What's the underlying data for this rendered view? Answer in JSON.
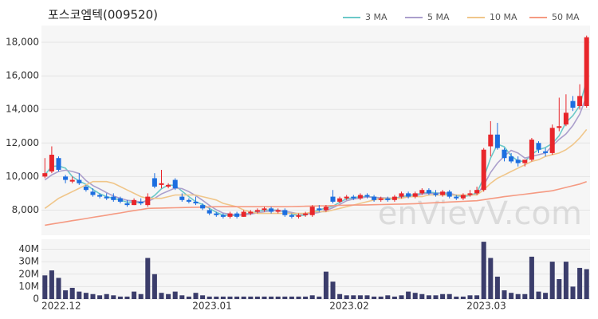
{
  "chart_data": {
    "type": "candlestick",
    "title": "포스코엠텍(009520)",
    "watermark": "enVievV.com",
    "categories": [
      "2022.12",
      null,
      null,
      null,
      null,
      null,
      null,
      null,
      null,
      null,
      null,
      null,
      null,
      null,
      null,
      null,
      null,
      null,
      null,
      null,
      null,
      null,
      "2023.01",
      null,
      null,
      null,
      null,
      null,
      null,
      null,
      null,
      null,
      null,
      null,
      null,
      null,
      null,
      null,
      null,
      null,
      null,
      null,
      "2023.02",
      null,
      null,
      null,
      null,
      null,
      null,
      null,
      null,
      null,
      null,
      null,
      null,
      null,
      null,
      null,
      null,
      null,
      null,
      null,
      "2023.03",
      null,
      null,
      null,
      null,
      null,
      null,
      null,
      null,
      null,
      null,
      null,
      null,
      null,
      null,
      null,
      null,
      null
    ],
    "ohlc": [
      [
        10000,
        11100,
        9900,
        10200
      ],
      [
        10300,
        11800,
        10200,
        11300
      ],
      [
        11100,
        11200,
        10300,
        10400
      ],
      [
        10000,
        10100,
        9600,
        9800
      ],
      [
        9700,
        10000,
        9600,
        9800
      ],
      [
        9800,
        10200,
        9500,
        9600
      ],
      [
        9400,
        9500,
        9100,
        9200
      ],
      [
        9100,
        9300,
        8800,
        8900
      ],
      [
        8900,
        9000,
        8700,
        8800
      ],
      [
        8800,
        9000,
        8600,
        8700
      ],
      [
        8800,
        9000,
        8500,
        8600
      ],
      [
        8700,
        8800,
        8400,
        8500
      ],
      [
        8400,
        8600,
        8200,
        8300
      ],
      [
        8300,
        8700,
        8300,
        8600
      ],
      [
        8500,
        8700,
        8300,
        8400
      ],
      [
        8300,
        9000,
        8200,
        8800
      ],
      [
        9900,
        10200,
        9300,
        9400
      ],
      [
        9500,
        10400,
        9300,
        9600
      ],
      [
        9400,
        9600,
        9300,
        9500
      ],
      [
        9800,
        9900,
        9200,
        9300
      ],
      [
        8800,
        9000,
        8500,
        8600
      ],
      [
        8600,
        8700,
        8400,
        8500
      ],
      [
        8500,
        8800,
        8300,
        8400
      ],
      [
        8300,
        8400,
        8000,
        8100
      ],
      [
        8000,
        8100,
        7700,
        7800
      ],
      [
        7800,
        7900,
        7600,
        7700
      ],
      [
        7700,
        7800,
        7500,
        7600
      ],
      [
        7600,
        7900,
        7500,
        7800
      ],
      [
        7800,
        7900,
        7500,
        7600
      ],
      [
        7600,
        8000,
        7600,
        7900
      ],
      [
        7800,
        8000,
        7700,
        7900
      ],
      [
        7900,
        8100,
        7800,
        8000
      ],
      [
        8000,
        8200,
        7900,
        8100
      ],
      [
        8100,
        8200,
        7800,
        7900
      ],
      [
        7900,
        8100,
        7800,
        8000
      ],
      [
        8000,
        8100,
        7600,
        7700
      ],
      [
        7700,
        7800,
        7500,
        7600
      ],
      [
        7600,
        7800,
        7500,
        7700
      ],
      [
        7700,
        7900,
        7600,
        7800
      ],
      [
        7700,
        8300,
        7600,
        8200
      ],
      [
        8100,
        8300,
        7900,
        8000
      ],
      [
        8000,
        8300,
        7900,
        8200
      ],
      [
        8800,
        9200,
        8400,
        8500
      ],
      [
        8500,
        8800,
        8400,
        8700
      ],
      [
        8700,
        8900,
        8600,
        8800
      ],
      [
        8800,
        8900,
        8600,
        8700
      ],
      [
        8700,
        9000,
        8600,
        8900
      ],
      [
        8900,
        9000,
        8700,
        8800
      ],
      [
        8800,
        8900,
        8500,
        8600
      ],
      [
        8600,
        8800,
        8500,
        8700
      ],
      [
        8700,
        8800,
        8500,
        8600
      ],
      [
        8600,
        8900,
        8500,
        8800
      ],
      [
        8800,
        9100,
        8700,
        9000
      ],
      [
        9000,
        9100,
        8700,
        8800
      ],
      [
        8800,
        9100,
        8700,
        9000
      ],
      [
        9000,
        9300,
        8900,
        9200
      ],
      [
        9200,
        9300,
        8900,
        9000
      ],
      [
        9000,
        9200,
        8800,
        8900
      ],
      [
        8900,
        9200,
        8800,
        9100
      ],
      [
        9100,
        9200,
        8700,
        8800
      ],
      [
        8800,
        8900,
        8600,
        8700
      ],
      [
        8700,
        9000,
        8600,
        8900
      ],
      [
        8900,
        9200,
        8800,
        9000
      ],
      [
        9000,
        9400,
        8900,
        9200
      ],
      [
        9200,
        11700,
        9100,
        11600
      ],
      [
        11800,
        13300,
        11200,
        12500
      ],
      [
        12500,
        13200,
        11600,
        11700
      ],
      [
        11600,
        11700,
        10900,
        11100
      ],
      [
        11200,
        11400,
        10800,
        10900
      ],
      [
        11000,
        11200,
        10600,
        10800
      ],
      [
        10800,
        11000,
        10600,
        11000
      ],
      [
        11000,
        12300,
        10900,
        12200
      ],
      [
        12000,
        12100,
        11400,
        11600
      ],
      [
        11500,
        11700,
        11200,
        11400
      ],
      [
        11400,
        13100,
        11300,
        12900
      ],
      [
        12900,
        14700,
        12700,
        13000
      ],
      [
        13100,
        14900,
        13000,
        13800
      ],
      [
        14500,
        14800,
        13900,
        14100
      ],
      [
        14200,
        15500,
        14000,
        14800
      ],
      [
        14200,
        18400,
        14100,
        18300
      ]
    ],
    "volume": [
      19000000,
      23000000,
      17000000,
      7000000,
      9000000,
      6000000,
      5000000,
      4000000,
      3000000,
      4000000,
      3000000,
      2000000,
      2000000,
      6000000,
      4000000,
      33000000,
      20000000,
      5000000,
      4000000,
      6000000,
      3000000,
      2000000,
      5000000,
      3000000,
      2000000,
      2000000,
      2000000,
      2000000,
      2000000,
      2000000,
      2000000,
      2000000,
      2000000,
      2000000,
      2000000,
      2000000,
      2000000,
      2000000,
      2000000,
      3000000,
      2000000,
      22000000,
      14000000,
      4000000,
      3000000,
      3000000,
      3000000,
      3000000,
      2000000,
      2000000,
      3000000,
      2000000,
      3000000,
      6000000,
      5000000,
      4000000,
      3000000,
      3000000,
      4000000,
      4000000,
      2000000,
      2000000,
      3000000,
      3000000,
      46000000,
      33000000,
      18000000,
      7000000,
      5000000,
      4000000,
      4000000,
      34000000,
      6000000,
      5000000,
      30000000,
      16000000,
      30000000,
      10000000,
      25000000,
      24000000
    ],
    "series": [
      {
        "name": "3 MA",
        "color": "#6cc9c9",
        "values": [
          10100,
          10600,
          10630,
          10500,
          10000,
          9730,
          9530,
          9230,
          8970,
          8800,
          8700,
          8600,
          8470,
          8470,
          8430,
          8600,
          8870,
          9270,
          9500,
          9470,
          9130,
          8800,
          8500,
          8330,
          8100,
          7870,
          7700,
          7700,
          7670,
          7770,
          7800,
          7930,
          8000,
          8000,
          8000,
          7870,
          7770,
          7670,
          7700,
          7900,
          8000,
          8130,
          8230,
          8470,
          8670,
          8730,
          8800,
          8800,
          8770,
          8700,
          8630,
          8700,
          8800,
          8870,
          8930,
          9000,
          9070,
          9030,
          9000,
          8930,
          8870,
          8800,
          8870,
          9030,
          9930,
          11100,
          11930,
          11770,
          11230,
          10930,
          10900,
          11330,
          11600,
          11730,
          11970,
          12430,
          13230,
          13630,
          14230,
          15730
        ]
      },
      {
        "name": "5 MA",
        "color": "#ab9fcc",
        "values": [
          9800,
          10100,
          10300,
          10380,
          10300,
          10180,
          9760,
          9460,
          9260,
          9040,
          8840,
          8700,
          8580,
          8540,
          8480,
          8520,
          8700,
          8960,
          9140,
          9320,
          9280,
          9100,
          8860,
          8580,
          8280,
          8020,
          7820,
          7760,
          7700,
          7720,
          7760,
          7840,
          7900,
          7960,
          7980,
          7940,
          7860,
          7780,
          7760,
          7800,
          7860,
          7980,
          8140,
          8340,
          8560,
          8660,
          8720,
          8780,
          8760,
          8740,
          8720,
          8700,
          8740,
          8780,
          8840,
          8960,
          9000,
          8980,
          9040,
          9000,
          8900,
          8880,
          8900,
          8920,
          9480,
          10240,
          10800,
          11220,
          11560,
          11400,
          11100,
          11200,
          11300,
          11400,
          11820,
          12220,
          12540,
          13040,
          13720,
          14800
        ]
      },
      {
        "name": "10 MA",
        "color": "#f0c68a",
        "values": [
          8100,
          8400,
          8700,
          8900,
          9100,
          9300,
          9500,
          9700,
          9700,
          9700,
          9600,
          9400,
          9200,
          9000,
          8800,
          8700,
          8700,
          8700,
          8800,
          8900,
          8900,
          8900,
          8900,
          8800,
          8700,
          8600,
          8400,
          8300,
          8200,
          8000,
          7900,
          7800,
          7800,
          7800,
          7800,
          7800,
          7800,
          7800,
          7800,
          7900,
          7900,
          7900,
          8000,
          8100,
          8200,
          8300,
          8400,
          8500,
          8600,
          8700,
          8700,
          8700,
          8700,
          8800,
          8800,
          8800,
          8900,
          8900,
          8900,
          8900,
          8900,
          8900,
          8900,
          8900,
          9200,
          9600,
          9900,
          10100,
          10300,
          10500,
          10700,
          10900,
          11000,
          11200,
          11300,
          11400,
          11600,
          11900,
          12300,
          12800
        ]
      },
      {
        "name": "50 MA",
        "color": "#f59a82",
        "values": [
          7100,
          7170,
          7230,
          7300,
          7370,
          7430,
          7500,
          7570,
          7630,
          7700,
          7770,
          7830,
          7900,
          7970,
          8030,
          8100,
          8110,
          8120,
          8130,
          8140,
          8150,
          8160,
          8170,
          8180,
          8190,
          8200,
          8200,
          8200,
          8200,
          8200,
          8200,
          8200,
          8200,
          8200,
          8200,
          8200,
          8210,
          8220,
          8230,
          8240,
          8250,
          8260,
          8270,
          8280,
          8290,
          8300,
          8300,
          8310,
          8320,
          8330,
          8340,
          8350,
          8360,
          8370,
          8380,
          8400,
          8420,
          8440,
          8460,
          8480,
          8500,
          8520,
          8540,
          8560,
          8620,
          8680,
          8740,
          8800,
          8850,
          8900,
          8950,
          9000,
          9050,
          9100,
          9150,
          9250,
          9350,
          9450,
          9550,
          9700
        ]
      }
    ],
    "up_color": "#e8262b",
    "down_color": "#1c6ee0",
    "volume_color": "#3b3d6b",
    "ylim": [
      6500,
      19000
    ],
    "yticks": [
      {
        "value": 8000,
        "label": "8,000"
      },
      {
        "value": 10000,
        "label": "10,000"
      },
      {
        "value": 12000,
        "label": "12,000"
      },
      {
        "value": 14000,
        "label": "14,000"
      },
      {
        "value": 16000,
        "label": "16,000"
      },
      {
        "value": 18000,
        "label": "18,000"
      }
    ],
    "volume_ylim": [
      0,
      48000000
    ],
    "volume_yticks": [
      {
        "value": 0,
        "label": "0"
      },
      {
        "value": 10000000,
        "label": "10M"
      },
      {
        "value": 20000000,
        "label": "20M"
      },
      {
        "value": 30000000,
        "label": "30M"
      },
      {
        "value": 40000000,
        "label": "40M"
      }
    ],
    "grid": true
  }
}
